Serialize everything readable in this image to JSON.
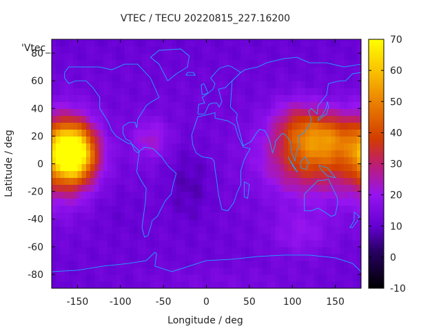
{
  "chart_data": {
    "type": "heatmap",
    "title": "VTEC / TECU 20220815_227.16200",
    "xlabel": "Longitude / deg",
    "ylabel": "Latitude / deg",
    "key_label": "'Vtec_",
    "xlim": [
      -180,
      180
    ],
    "ylim": [
      -90,
      90
    ],
    "x_ticks": [
      -150,
      -100,
      -50,
      0,
      50,
      100,
      150
    ],
    "y_ticks": [
      -80,
      -60,
      -40,
      -20,
      0,
      20,
      40,
      60,
      80
    ],
    "colorbar": {
      "range": [
        -10,
        70
      ],
      "ticks": [
        -10,
        0,
        10,
        20,
        30,
        40,
        50,
        60,
        70
      ]
    },
    "grid_step_deg": 5,
    "background_tecu": 11,
    "features": [
      {
        "lon": -155,
        "lat": 8,
        "peak": 58,
        "sigma_lon": 18,
        "sigma_lat": 14
      },
      {
        "lon": -170,
        "lat": 5,
        "peak": 20,
        "sigma_lon": 25,
        "sigma_lat": 22
      },
      {
        "lon": -65,
        "lat": 18,
        "peak": 10,
        "sigma_lon": 15,
        "sigma_lat": 10
      },
      {
        "lon": 120,
        "lat": 5,
        "peak": 26,
        "sigma_lon": 35,
        "sigma_lat": 18
      },
      {
        "lon": 140,
        "lat": 20,
        "peak": 20,
        "sigma_lon": 25,
        "sigma_lat": 12
      },
      {
        "lon": 105,
        "lat": 30,
        "peak": 12,
        "sigma_lon": 20,
        "sigma_lat": 12
      },
      {
        "lon": 110,
        "lat": -50,
        "peak": 7,
        "sigma_lon": 25,
        "sigma_lat": 12
      },
      {
        "lon": -20,
        "lat": -15,
        "peak": -5,
        "sigma_lon": 20,
        "sigma_lat": 20
      },
      {
        "lon": -100,
        "lat": -35,
        "peak": -2,
        "sigma_lon": 25,
        "sigma_lat": 15
      },
      {
        "lon": 20,
        "lat": -85,
        "peak": 3,
        "sigma_lon": 80,
        "sigma_lat": 8
      }
    ]
  }
}
